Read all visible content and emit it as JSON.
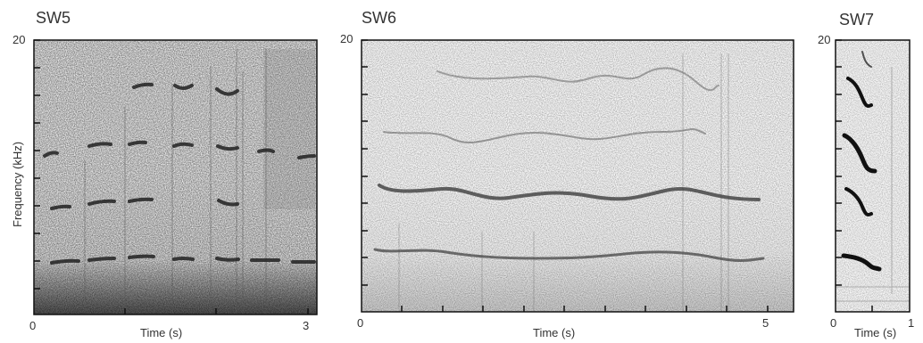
{
  "panels": [
    {
      "title": "SW5",
      "y_top_label": "20",
      "x_start_label": "0",
      "x_end_label": "3",
      "x_axis_label": "Time (s)",
      "y_axis_label": "Frequency (kHz)"
    },
    {
      "title": "SW6",
      "y_top_label": "20",
      "x_start_label": "0",
      "x_end_label": "5",
      "x_axis_label": "Time (s)"
    },
    {
      "title": "SW7",
      "y_top_label": "20",
      "x_start_label": "0",
      "x_end_label": "1",
      "x_axis_label": "Time (s)"
    }
  ],
  "colors": {
    "axis": "#111111",
    "band": "#3a3a3a",
    "noise": "#9a9a9a"
  }
}
